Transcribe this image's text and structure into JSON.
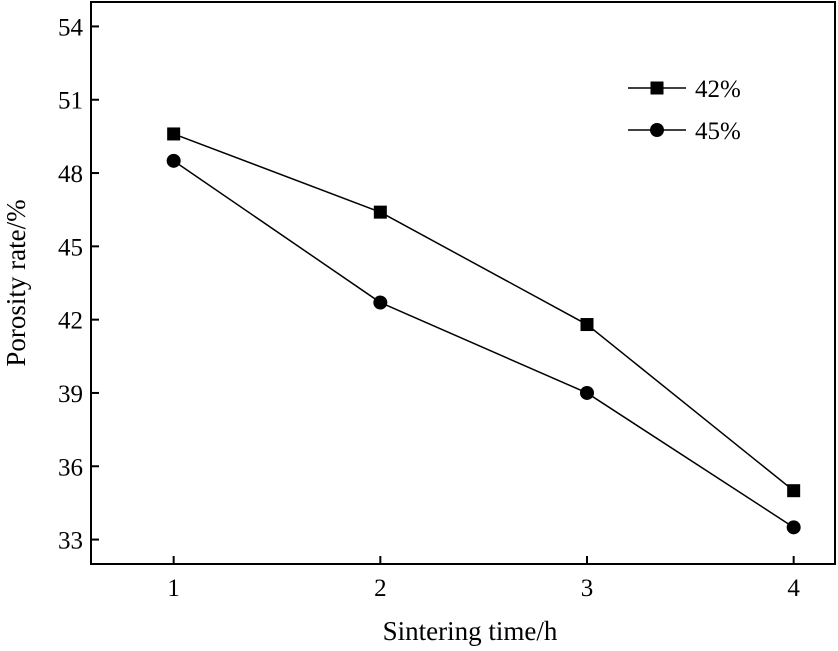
{
  "chart_data": {
    "type": "line",
    "title": "",
    "xlabel": "Sintering time/h",
    "ylabel": "Porosity rate/%",
    "x": [
      1,
      2,
      3,
      4
    ],
    "xlim": [
      0.6,
      4.2
    ],
    "ylim": [
      32,
      55
    ],
    "xticks": [
      1,
      2,
      3,
      4
    ],
    "yticks": [
      33,
      36,
      39,
      42,
      45,
      48,
      51,
      54
    ],
    "grid": false,
    "legend_position": "top-right",
    "series": [
      {
        "name": "42%",
        "marker": "square",
        "color": "#000000",
        "values": [
          49.6,
          46.4,
          41.8,
          35.0
        ]
      },
      {
        "name": "45%",
        "marker": "circle",
        "color": "#000000",
        "values": [
          48.5,
          42.7,
          39.0,
          33.5
        ]
      }
    ]
  }
}
